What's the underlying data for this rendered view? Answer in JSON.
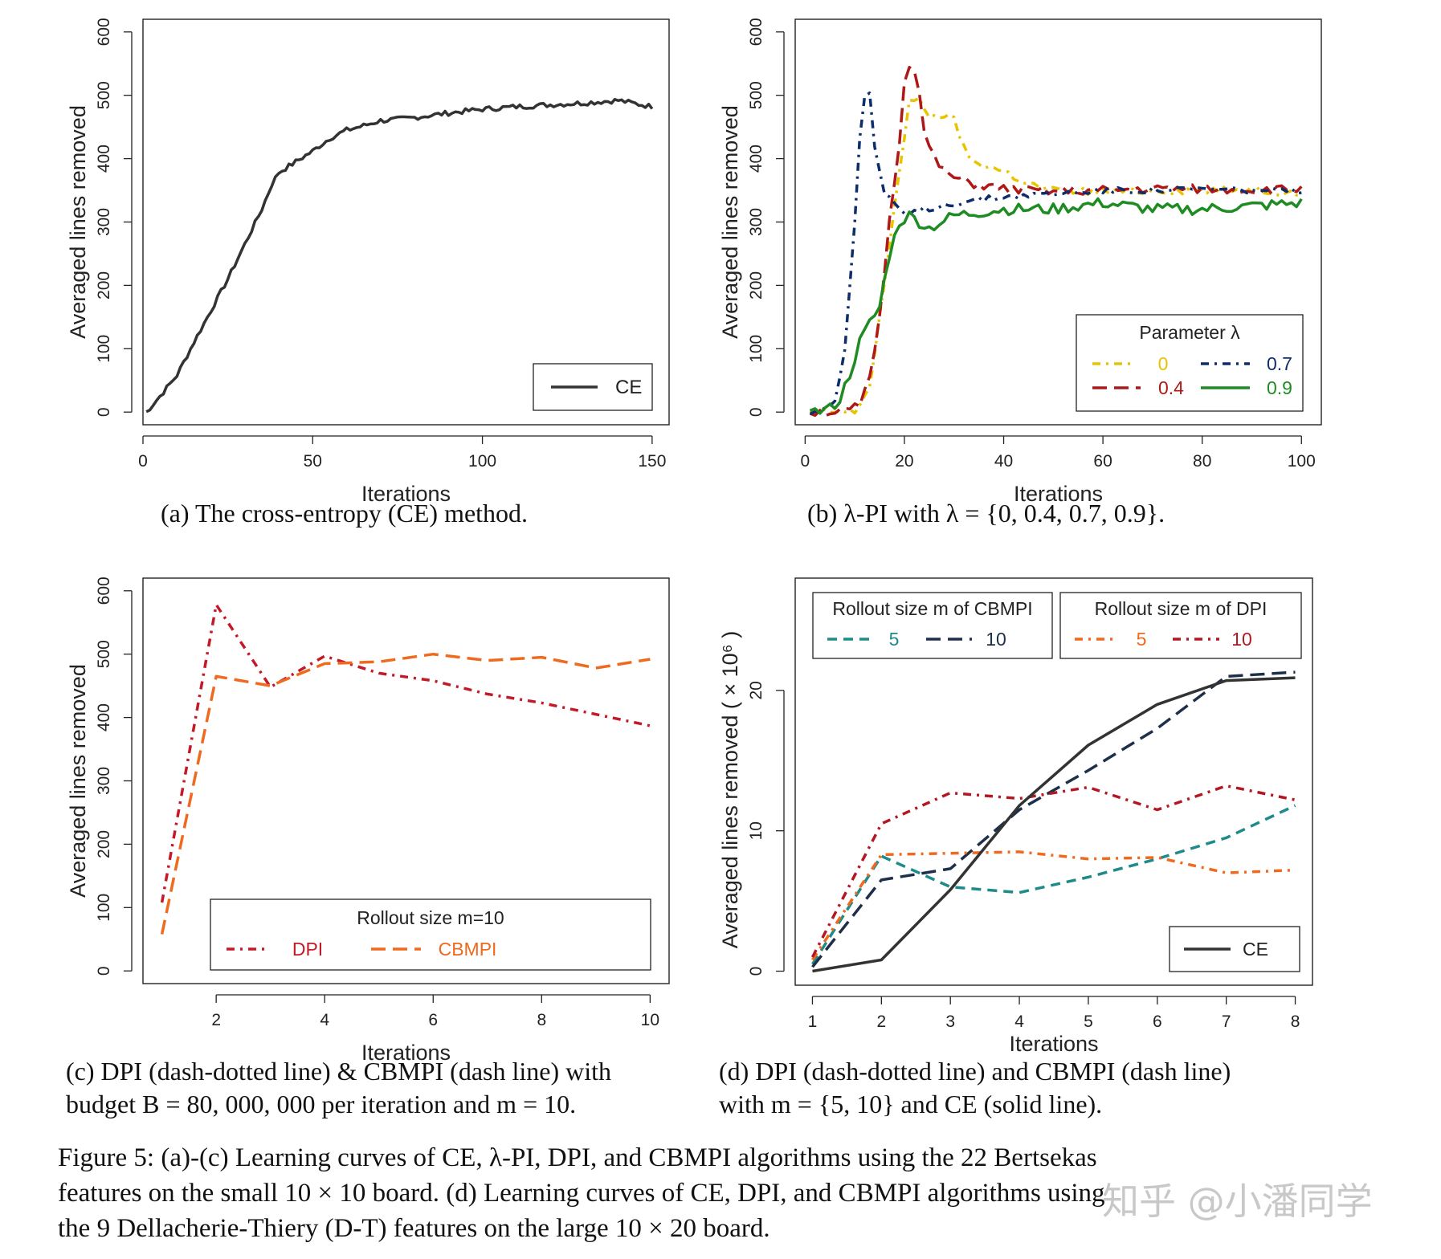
{
  "chart_data": [
    {
      "id": "a",
      "type": "line",
      "ylabel": "Averaged lines removed",
      "xlabel": "Iterations",
      "xlim": [
        0,
        155
      ],
      "ylim": [
        -20,
        620
      ],
      "xticks": [
        0,
        50,
        100,
        150
      ],
      "yticks": [
        0,
        100,
        200,
        300,
        400,
        500,
        600
      ],
      "caption": "(a)  The cross-entropy (CE) method.",
      "legend": {
        "position": "bottom-right",
        "title": ""
      },
      "series": [
        {
          "name": "CE",
          "color": "#333333",
          "dash": "solid",
          "noise": 4,
          "x": [
            1,
            5,
            10,
            15,
            20,
            25,
            30,
            35,
            38,
            40,
            45,
            50,
            55,
            60,
            65,
            70,
            75,
            80,
            90,
            100,
            110,
            120,
            130,
            140,
            150
          ],
          "y": [
            0,
            25,
            58,
            110,
            160,
            210,
            265,
            320,
            360,
            378,
            395,
            412,
            432,
            445,
            452,
            460,
            462,
            465,
            472,
            478,
            482,
            485,
            488,
            492,
            482
          ]
        }
      ]
    },
    {
      "id": "b",
      "type": "line",
      "ylabel": "Averaged lines removed",
      "xlabel": "Iterations",
      "xlim": [
        -2,
        104
      ],
      "ylim": [
        -20,
        620
      ],
      "xticks": [
        0,
        20,
        40,
        60,
        80,
        100
      ],
      "yticks": [
        0,
        100,
        200,
        300,
        400,
        500,
        600
      ],
      "caption": "(b)  λ-PI with λ = {0, 0.4, 0.7, 0.9}.",
      "legend": {
        "position": "bottom-right",
        "title": "Parameter λ"
      },
      "series": [
        {
          "name": "0",
          "color": "#e8c400",
          "dash": "dashdot",
          "noise": 6,
          "x": [
            1,
            10,
            13,
            15,
            17,
            19,
            21,
            23,
            25,
            28,
            30,
            33,
            36,
            40,
            45,
            50,
            60,
            70,
            80,
            90,
            100
          ],
          "y": [
            0,
            0,
            40,
            150,
            260,
            380,
            490,
            500,
            460,
            470,
            460,
            400,
            390,
            380,
            360,
            350,
            348,
            350,
            350,
            352,
            345
          ]
        },
        {
          "name": "0.4",
          "color": "#b01818",
          "dash": "longdash",
          "noise": 7,
          "x": [
            1,
            8,
            11,
            13,
            15,
            17,
            19,
            20,
            21,
            22,
            23,
            24,
            26,
            28,
            30,
            34,
            40,
            50,
            60,
            70,
            80,
            90,
            100
          ],
          "y": [
            0,
            0,
            10,
            50,
            150,
            300,
            430,
            520,
            550,
            545,
            500,
            440,
            400,
            380,
            370,
            360,
            352,
            348,
            350,
            352,
            352,
            350,
            352
          ]
        },
        {
          "name": "0.7",
          "color": "#0d2d6b",
          "dash": "dashdot",
          "noise": 5,
          "x": [
            1,
            3,
            6,
            8,
            10,
            11,
            12,
            13,
            14,
            16,
            18,
            20,
            24,
            30,
            40,
            50,
            60,
            70,
            80,
            90,
            100
          ],
          "y": [
            0,
            2,
            20,
            100,
            300,
            430,
            500,
            505,
            420,
            340,
            330,
            310,
            320,
            330,
            340,
            345,
            350,
            350,
            352,
            350,
            348
          ]
        },
        {
          "name": "0.9",
          "color": "#1e8c23",
          "dash": "solid",
          "noise": 9,
          "x": [
            1,
            2,
            5,
            7,
            9,
            11,
            13,
            15,
            17,
            19,
            21,
            23,
            25,
            30,
            40,
            50,
            60,
            70,
            80,
            90,
            100
          ],
          "y": [
            10,
            0,
            5,
            20,
            60,
            110,
            140,
            165,
            250,
            300,
            310,
            300,
            290,
            310,
            320,
            320,
            330,
            320,
            320,
            325,
            330
          ]
        }
      ]
    },
    {
      "id": "c",
      "type": "line",
      "ylabel": "Averaged lines removed",
      "xlabel": "Iterations",
      "xlim": [
        0.65,
        10.35
      ],
      "ylim": [
        -20,
        620
      ],
      "xticks": [
        2,
        4,
        6,
        8,
        10
      ],
      "yticks": [
        0,
        100,
        200,
        300,
        400,
        500,
        600
      ],
      "caption": [
        "(c)  DPI (dash-dotted line) & CBMPI (dash line) with",
        "budget B = 80, 000, 000 per iteration and m = 10."
      ],
      "legend": {
        "position": "bottom",
        "title": "Rollout size m=10"
      },
      "series": [
        {
          "name": "DPI",
          "color": "#c41a28",
          "dash": "dashdot",
          "x": [
            1,
            2,
            3,
            4,
            5,
            6,
            7,
            8,
            9,
            10
          ],
          "y": [
            108,
            578,
            448,
            497,
            470,
            458,
            437,
            423,
            405,
            387
          ]
        },
        {
          "name": "CBMPI",
          "color": "#ef6a1e",
          "dash": "longdash",
          "x": [
            1,
            2,
            3,
            4,
            5,
            6,
            7,
            8,
            9,
            10
          ],
          "y": [
            58,
            465,
            450,
            485,
            488,
            500,
            490,
            495,
            478,
            492
          ]
        }
      ]
    },
    {
      "id": "d",
      "type": "line",
      "ylabel": "Averaged lines removed ( × 10⁶ )",
      "xlabel": "Iterations",
      "xlim": [
        0.75,
        8.25
      ],
      "ylim": [
        -1,
        28
      ],
      "xticks": [
        1,
        2,
        3,
        4,
        5,
        6,
        7,
        8
      ],
      "yticks": [
        0,
        10,
        20
      ],
      "caption": [
        "(d)  DPI (dash-dotted line) and CBMPI (dash line)",
        "with m = {5, 10} and CE (solid line)."
      ],
      "legend": {
        "position": "top",
        "title": "Rollout size m of CBMPI / Rollout size m of DPI"
      },
      "series": [
        {
          "name": "CBMPI 5",
          "color": "#1e8a8a",
          "dash": "dash",
          "x": [
            1,
            2,
            3,
            4,
            5,
            6,
            7,
            8
          ],
          "y": [
            0.5,
            8.2,
            6.0,
            5.6,
            6.7,
            8.0,
            9.5,
            11.8
          ]
        },
        {
          "name": "CBMPI 10",
          "color": "#1e2f4a",
          "dash": "longdash",
          "x": [
            1,
            2,
            3,
            4,
            5,
            6,
            7,
            8
          ],
          "y": [
            0.3,
            6.5,
            7.3,
            11.5,
            14.3,
            17.3,
            21.0,
            21.3
          ]
        },
        {
          "name": "DPI 5",
          "color": "#ef6a1e",
          "dash": "dashdot",
          "x": [
            1,
            2,
            3,
            4,
            5,
            6,
            7,
            8
          ],
          "y": [
            0.8,
            8.3,
            8.4,
            8.5,
            8.0,
            8.1,
            7.0,
            7.2
          ]
        },
        {
          "name": "DPI 10",
          "color": "#b51722",
          "dash": "dashdot",
          "x": [
            1,
            2,
            3,
            4,
            5,
            6,
            7,
            8
          ],
          "y": [
            1.0,
            10.5,
            12.7,
            12.3,
            13.1,
            11.5,
            13.2,
            12.2
          ]
        },
        {
          "name": "CE",
          "color": "#333333",
          "dash": "solid",
          "x": [
            1,
            2,
            3,
            4,
            5,
            6,
            7,
            8
          ],
          "y": [
            0.0,
            0.8,
            5.8,
            11.8,
            16.1,
            19.0,
            20.7,
            20.9
          ]
        }
      ]
    }
  ],
  "legend_labels": {
    "a_ce": "CE",
    "b_title": "Parameter λ",
    "b_0": "0",
    "b_04": "0.4",
    "b_07": "0.7",
    "b_09": "0.9",
    "c_title": "Rollout size m=10",
    "c_dpi": "DPI",
    "c_cbmpi": "CBMPI",
    "d_cbmpi_title": "Rollout size m of CBMPI",
    "d_dpi_title": "Rollout size m of DPI",
    "d_c5": "5",
    "d_c10": "10",
    "d_d5": "5",
    "d_d10": "10",
    "d_ce": "CE"
  },
  "figure_caption": [
    "Figure 5: (a)-(c) Learning curves of CE, λ-PI, DPI, and CBMPI algorithms using the 22 Bertsekas",
    "features on the small 10 × 10 board. (d) Learning curves of CE, DPI, and CBMPI algorithms using",
    "the 9 Dellacherie-Thiery (D-T) features on the large 10 × 20 board."
  ],
  "watermark": "知乎 @小潘同学"
}
